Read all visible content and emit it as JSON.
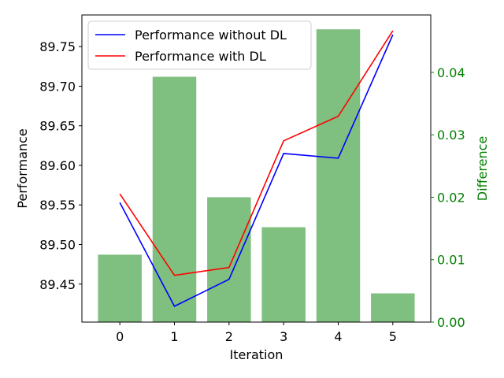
{
  "chart_data": {
    "type": "bar+line",
    "x": [
      0,
      1,
      2,
      3,
      4,
      5
    ],
    "xlabel": "Iteration",
    "ylabel": "Performance",
    "y2label": "Difference",
    "ylim": [
      89.402,
      89.79
    ],
    "y2lim": [
      0,
      0.0492
    ],
    "yticks": [
      "89.45",
      "89.50",
      "89.55",
      "89.60",
      "89.65",
      "89.70",
      "89.75"
    ],
    "y2ticks": [
      "0.00",
      "0.01",
      "0.02",
      "0.03",
      "0.04"
    ],
    "series": [
      {
        "name": "Performance without DL",
        "type": "line",
        "color": "#0000ff",
        "values": [
          89.553,
          89.422,
          89.456,
          89.615,
          89.609,
          89.765
        ]
      },
      {
        "name": "Performance with DL",
        "type": "line",
        "color": "#ff0000",
        "values": [
          89.564,
          89.461,
          89.471,
          89.631,
          89.662,
          89.77
        ]
      },
      {
        "type": "bar",
        "axis": "right",
        "color": "#008000",
        "opacity": 0.5,
        "values": [
          0.0108,
          0.0393,
          0.02,
          0.0152,
          0.0469,
          0.0046
        ]
      }
    ],
    "legend_position": "top-left",
    "y2_color": "#008000"
  }
}
